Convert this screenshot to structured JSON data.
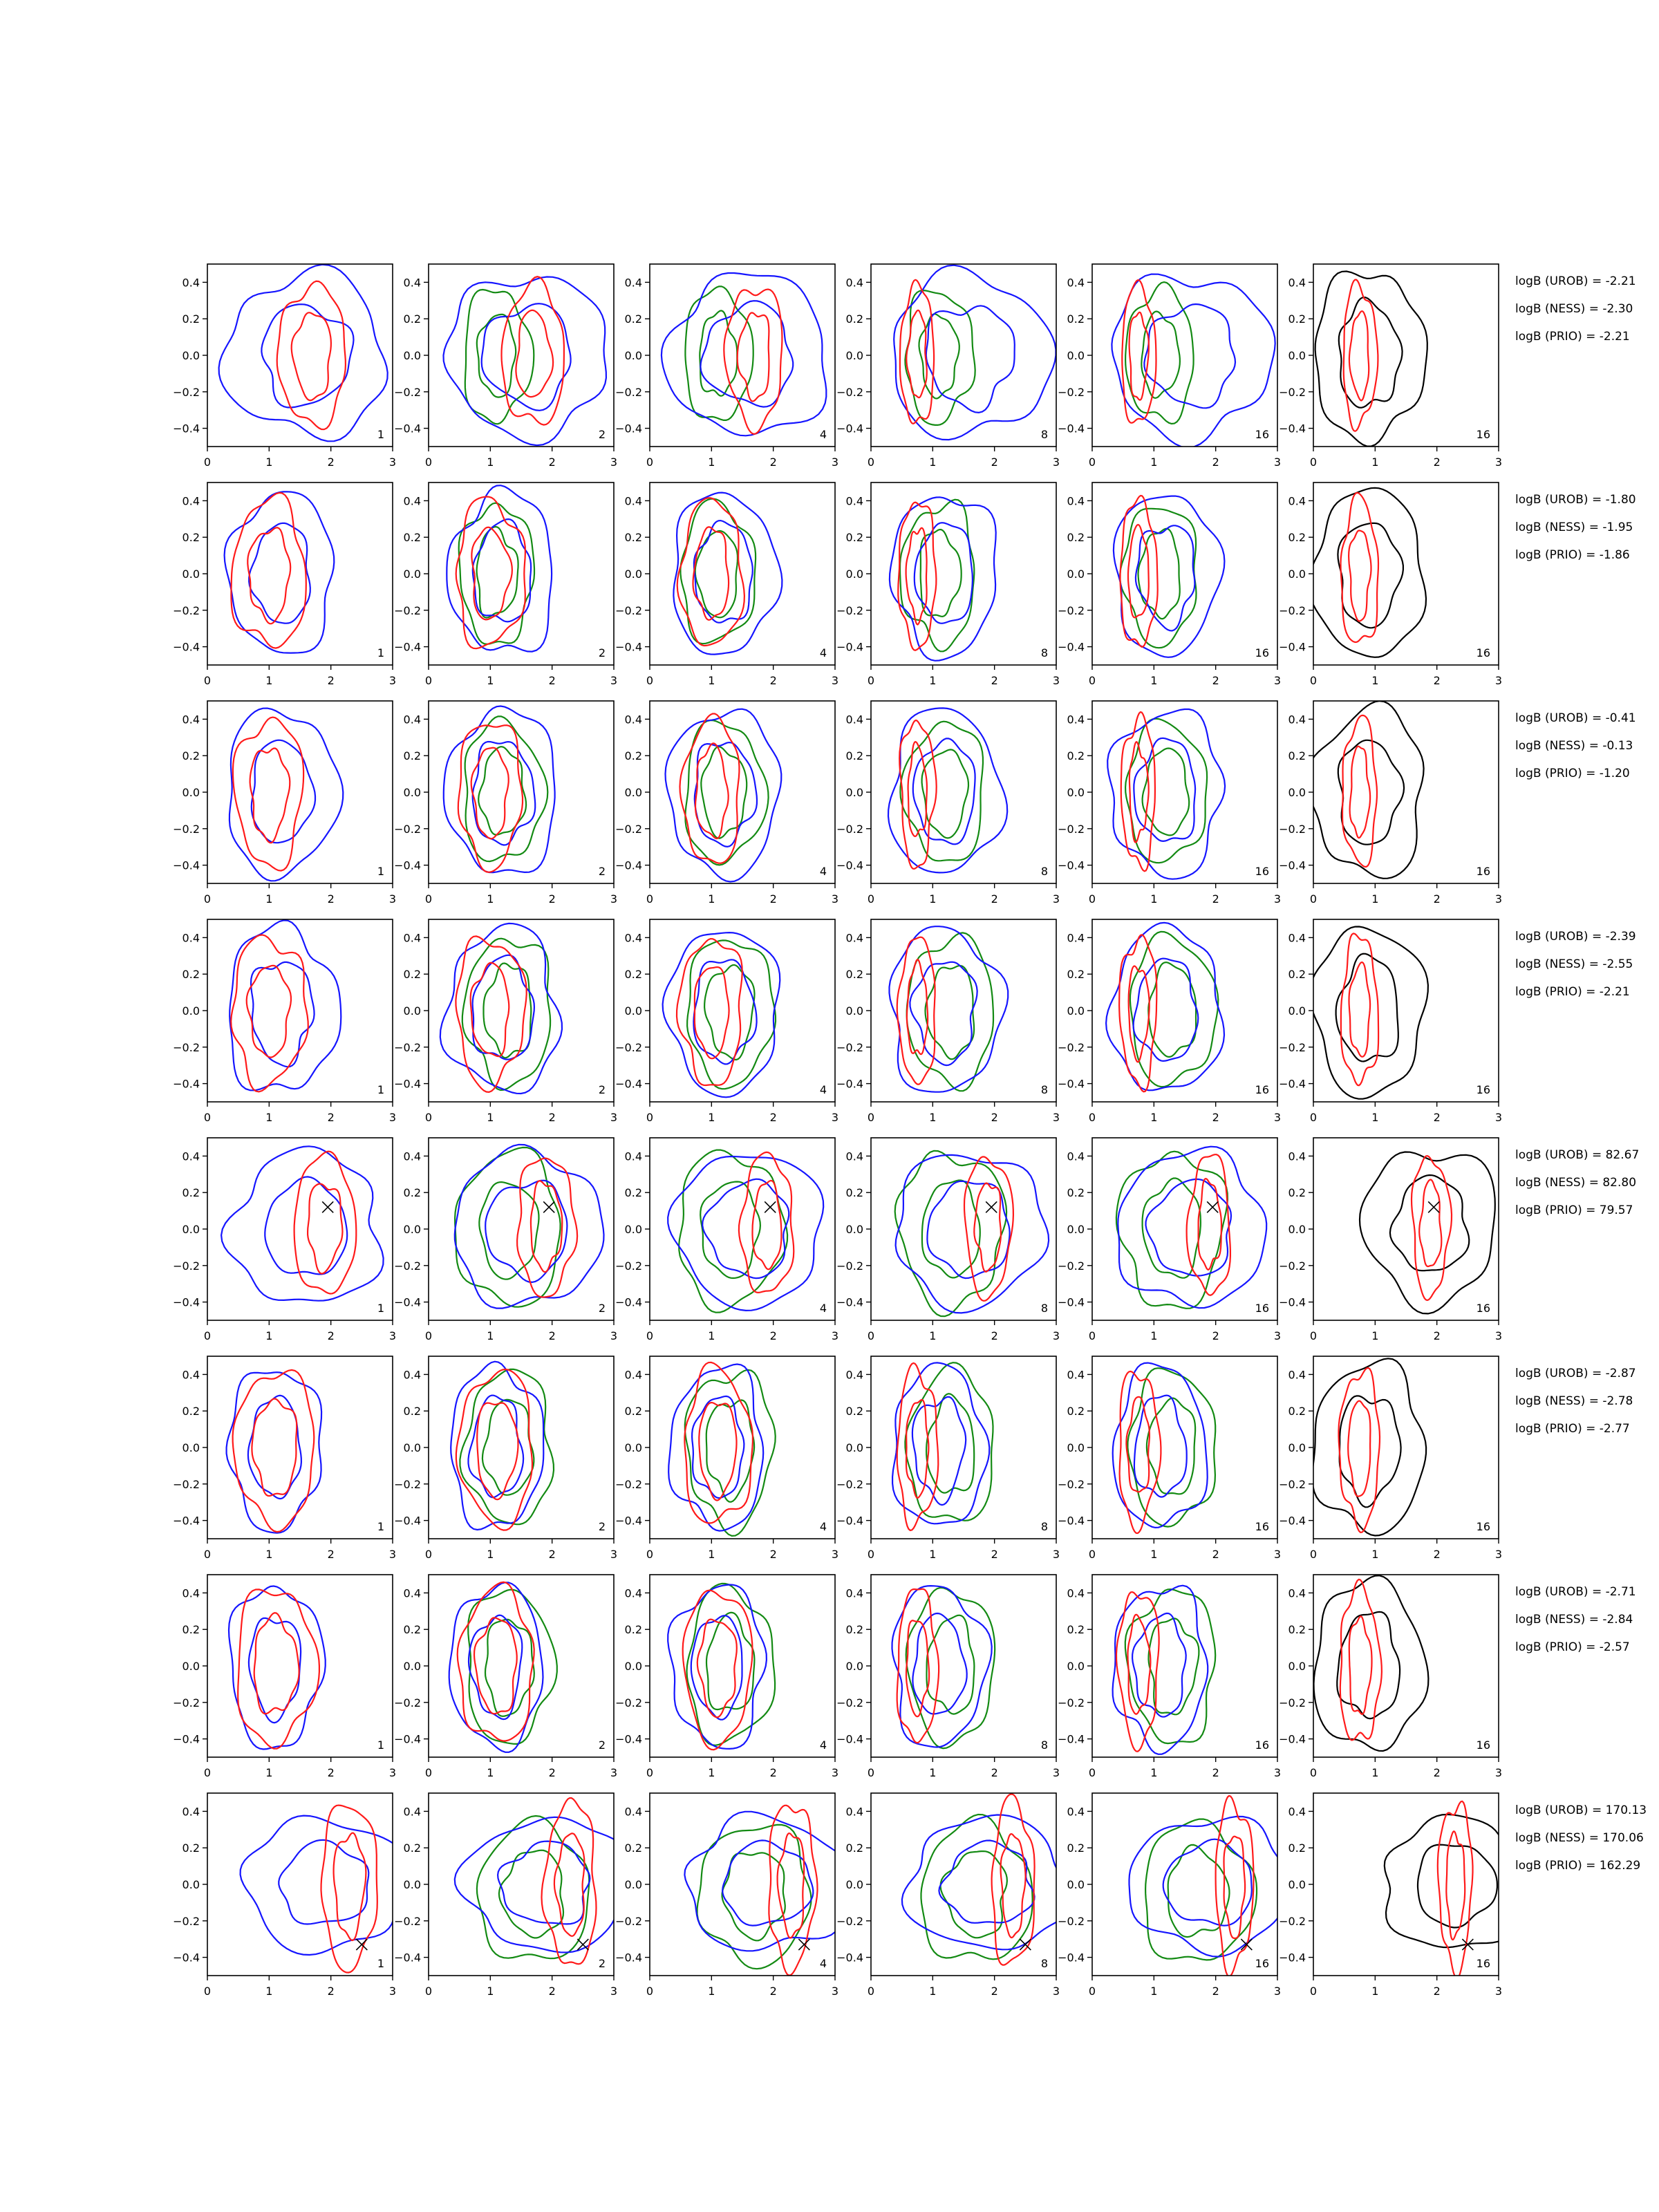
{
  "chart_data": {
    "type": "contour",
    "grid": false,
    "xlim": [
      0,
      3
    ],
    "ylim": [
      -0.5,
      0.5
    ],
    "xticks": [
      0,
      1,
      2,
      3
    ],
    "yticks": [
      -0.4,
      -0.2,
      0.0,
      0.2,
      0.4
    ],
    "tick_labels": {
      "x": [
        "0",
        "1",
        "2",
        "3"
      ],
      "y": [
        "−0.4",
        "−0.2",
        "0.0",
        "0.2",
        "0.4"
      ]
    },
    "colors": {
      "blue": "#1515ff",
      "red": "#ff1a1a",
      "green": "#138a13",
      "black": "#000000"
    },
    "column_labels": [
      "1",
      "2",
      "4",
      "8",
      "16",
      "16"
    ],
    "rows": [
      {
        "marker": null,
        "centers": {
          "blue": [
            1.6,
            0.0
          ],
          "red": [
            1.7,
            0.0
          ],
          "green": [
            1.1,
            0.0
          ]
        },
        "spreads": {
          "blue": [
            1.3,
            0.44
          ],
          "red": [
            0.55,
            0.38
          ],
          "green": [
            0.55,
            0.36
          ]
        },
        "logB": [
          "logB (UROB) = -2.21",
          "logB (NESS) = -2.30",
          "logB (PRIO) = -2.21"
        ]
      },
      {
        "marker": null,
        "centers": {
          "blue": [
            1.2,
            0.0
          ],
          "red": [
            1.0,
            0.0
          ],
          "green": [
            1.1,
            0.0
          ]
        },
        "spreads": {
          "blue": [
            0.85,
            0.44
          ],
          "red": [
            0.6,
            0.4
          ],
          "green": [
            0.6,
            0.38
          ]
        },
        "logB": [
          "logB (UROB) = -1.80",
          "logB (NESS) = -1.95",
          "logB (PRIO) = -1.86"
        ]
      },
      {
        "marker": null,
        "centers": {
          "blue": [
            1.2,
            0.0
          ],
          "red": [
            1.0,
            0.0
          ],
          "green": [
            1.2,
            0.0
          ]
        },
        "spreads": {
          "blue": [
            0.9,
            0.45
          ],
          "red": [
            0.55,
            0.4
          ],
          "green": [
            0.65,
            0.38
          ]
        },
        "logB": [
          "logB (UROB) = -0.41",
          "logB (NESS) = -0.13",
          "logB (PRIO) = -1.20"
        ]
      },
      {
        "marker": null,
        "centers": {
          "blue": [
            1.2,
            0.0
          ],
          "red": [
            1.0,
            0.0
          ],
          "green": [
            1.3,
            0.0
          ]
        },
        "spreads": {
          "blue": [
            0.9,
            0.45
          ],
          "red": [
            0.6,
            0.4
          ],
          "green": [
            0.7,
            0.4
          ]
        },
        "logB": [
          "logB (UROB) = -2.39",
          "logB (NESS) = -2.55",
          "logB (PRIO) = -2.21"
        ]
      },
      {
        "marker": [
          1.95,
          0.12
        ],
        "centers": {
          "blue": [
            1.6,
            0.0
          ],
          "red": [
            1.9,
            0.02
          ],
          "green": [
            1.3,
            0.0
          ]
        },
        "spreads": {
          "blue": [
            1.2,
            0.42
          ],
          "red": [
            0.5,
            0.38
          ],
          "green": [
            0.85,
            0.42
          ]
        },
        "logB": [
          "logB (UROB) = 82.67",
          "logB (NESS) = 82.80",
          "logB (PRIO) = 79.57"
        ]
      },
      {
        "marker": null,
        "centers": {
          "blue": [
            1.1,
            0.0
          ],
          "red": [
            1.1,
            0.0
          ],
          "green": [
            1.3,
            0.0
          ]
        },
        "spreads": {
          "blue": [
            0.75,
            0.44
          ],
          "red": [
            0.65,
            0.42
          ],
          "green": [
            0.7,
            0.42
          ]
        },
        "logB": [
          "logB (UROB) = -2.87",
          "logB (NESS) = -2.78",
          "logB (PRIO) = -2.77"
        ]
      },
      {
        "marker": null,
        "centers": {
          "blue": [
            1.1,
            0.0
          ],
          "red": [
            1.1,
            0.0
          ],
          "green": [
            1.3,
            0.0
          ]
        },
        "spreads": {
          "blue": [
            0.75,
            0.44
          ],
          "red": [
            0.65,
            0.42
          ],
          "green": [
            0.7,
            0.42
          ]
        },
        "logB": [
          "logB (UROB) = -2.71",
          "logB (NESS) = -2.84",
          "logB (PRIO) = -2.57"
        ]
      },
      {
        "marker": [
          2.5,
          -0.33
        ],
        "centers": {
          "blue": [
            1.9,
            0.0
          ],
          "red": [
            2.3,
            0.0
          ],
          "green": [
            1.7,
            -0.05
          ]
        },
        "spreads": {
          "blue": [
            1.3,
            0.36
          ],
          "red": [
            0.45,
            0.45
          ],
          "green": [
            0.9,
            0.38
          ]
        },
        "logB": [
          "logB (UROB) = 170.13",
          "logB (NESS) = 170.06",
          "logB (PRIO) = 162.29"
        ]
      }
    ]
  }
}
